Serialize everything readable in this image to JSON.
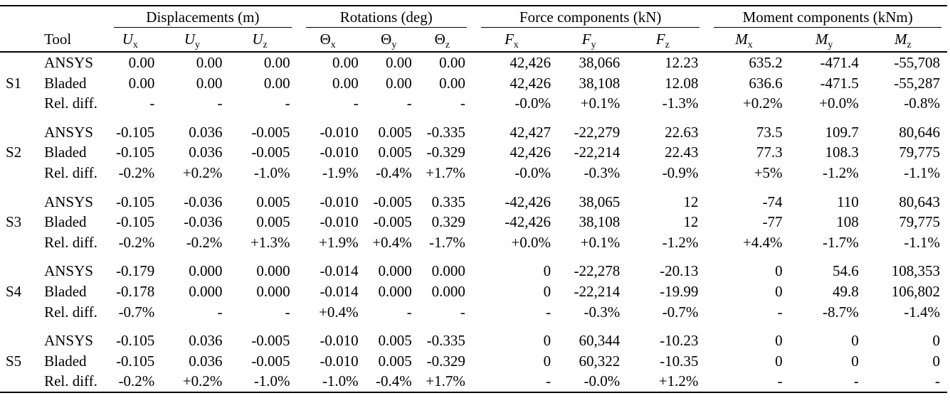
{
  "colors": {
    "text": "#000000",
    "background": "#ffffff",
    "rule": "#000000"
  },
  "table": {
    "tool_header": "Tool",
    "groups": [
      {
        "label": "Displacements (m)",
        "columns": [
          {
            "base": "U",
            "sub": "x"
          },
          {
            "base": "U",
            "sub": "y"
          },
          {
            "base": "U",
            "sub": "z"
          }
        ]
      },
      {
        "label": "Rotations (deg)",
        "columns": [
          {
            "base": "Θ",
            "sub": "x"
          },
          {
            "base": "Θ",
            "sub": "y"
          },
          {
            "base": "Θ",
            "sub": "z"
          }
        ]
      },
      {
        "label": "Force components (kN)",
        "columns": [
          {
            "base": "F",
            "sub": "x"
          },
          {
            "base": "F",
            "sub": "y"
          },
          {
            "base": "F",
            "sub": "z"
          }
        ]
      },
      {
        "label": "Moment components (kNm)",
        "columns": [
          {
            "base": "M",
            "sub": "x"
          },
          {
            "base": "M",
            "sub": "y"
          },
          {
            "base": "M",
            "sub": "z"
          }
        ]
      }
    ],
    "sections": [
      {
        "id": "S1",
        "rows": [
          {
            "tool": "ANSYS",
            "values": [
              "0.00",
              "0.00",
              "0.00",
              "0.00",
              "0.00",
              "0.00",
              "42,426",
              "38,066",
              "12.23",
              "635.2",
              "-471.4",
              "-55,708"
            ]
          },
          {
            "tool": "Bladed",
            "values": [
              "0.00",
              "0.00",
              "0.00",
              "0.00",
              "0.00",
              "0.00",
              "42,426",
              "38,108",
              "12.08",
              "636.6",
              "-471.5",
              "-55,287"
            ]
          },
          {
            "tool": "Rel. diff.",
            "values": [
              "-",
              "-",
              "-",
              "-",
              "-",
              "-",
              "-0.0%",
              "+0.1%",
              "-1.3%",
              "+0.2%",
              "+0.0%",
              "-0.8%"
            ]
          }
        ]
      },
      {
        "id": "S2",
        "rows": [
          {
            "tool": "ANSYS",
            "values": [
              "-0.105",
              "0.036",
              "-0.005",
              "-0.010",
              "0.005",
              "-0.335",
              "42,427",
              "-22,279",
              "22.63",
              "73.5",
              "109.7",
              "80,646"
            ]
          },
          {
            "tool": "Bladed",
            "values": [
              "-0.105",
              "0.036",
              "-0.005",
              "-0.010",
              "0.005",
              "-0.329",
              "42,426",
              "-22,214",
              "22.43",
              "77.3",
              "108.3",
              "79,775"
            ]
          },
          {
            "tool": "Rel. diff.",
            "values": [
              "-0.2%",
              "+0.2%",
              "-1.0%",
              "-1.9%",
              "-0.4%",
              "+1.7%",
              "-0.0%",
              "-0.3%",
              "-0.9%",
              "+5%",
              "-1.2%",
              "-1.1%"
            ]
          }
        ]
      },
      {
        "id": "S3",
        "rows": [
          {
            "tool": "ANSYS",
            "values": [
              "-0.105",
              "-0.036",
              "0.005",
              "-0.010",
              "-0.005",
              "0.335",
              "-42,426",
              "38,065",
              "12",
              "-74",
              "110",
              "80,643"
            ]
          },
          {
            "tool": "Bladed",
            "values": [
              "-0.105",
              "-0.036",
              "0.005",
              "-0.010",
              "-0.005",
              "0.329",
              "-42,426",
              "38,108",
              "12",
              "-77",
              "108",
              "79,775"
            ]
          },
          {
            "tool": "Rel. diff.",
            "values": [
              "-0.2%",
              "-0.2%",
              "+1.3%",
              "+1.9%",
              "+0.4%",
              "-1.7%",
              "+0.0%",
              "+0.1%",
              "-1.2%",
              "+4.4%",
              "-1.7%",
              "-1.1%"
            ]
          }
        ]
      },
      {
        "id": "S4",
        "rows": [
          {
            "tool": "ANSYS",
            "values": [
              "-0.179",
              "0.000",
              "0.000",
              "-0.014",
              "0.000",
              "0.000",
              "0",
              "-22,278",
              "-20.13",
              "0",
              "54.6",
              "108,353"
            ]
          },
          {
            "tool": "Bladed",
            "values": [
              "-0.178",
              "0.000",
              "0.000",
              "-0.014",
              "0.000",
              "0.000",
              "0",
              "-22,214",
              "-19.99",
              "0",
              "49.8",
              "106,802"
            ]
          },
          {
            "tool": "Rel. diff.",
            "values": [
              "-0.7%",
              "-",
              "-",
              "+0.4%",
              "-",
              "-",
              "-",
              "-0.3%",
              "-0.7%",
              "-",
              "-8.7%",
              "-1.4%"
            ]
          }
        ]
      },
      {
        "id": "S5",
        "rows": [
          {
            "tool": "ANSYS",
            "values": [
              "-0.105",
              "0.036",
              "-0.005",
              "-0.010",
              "0.005",
              "-0.335",
              "0",
              "60,344",
              "-10.23",
              "0",
              "0",
              "0"
            ]
          },
          {
            "tool": "Bladed",
            "values": [
              "-0.105",
              "0.036",
              "-0.005",
              "-0.010",
              "0.005",
              "-0.329",
              "0",
              "60,322",
              "-10.35",
              "0",
              "0",
              "0"
            ]
          },
          {
            "tool": "Rel. diff.",
            "values": [
              "-0.2%",
              "+0.2%",
              "-1.0%",
              "-1.0%",
              "-0.4%",
              "+1.7%",
              "-",
              "-0.0%",
              "+1.2%",
              "-",
              "-",
              "-"
            ]
          }
        ]
      }
    ]
  }
}
